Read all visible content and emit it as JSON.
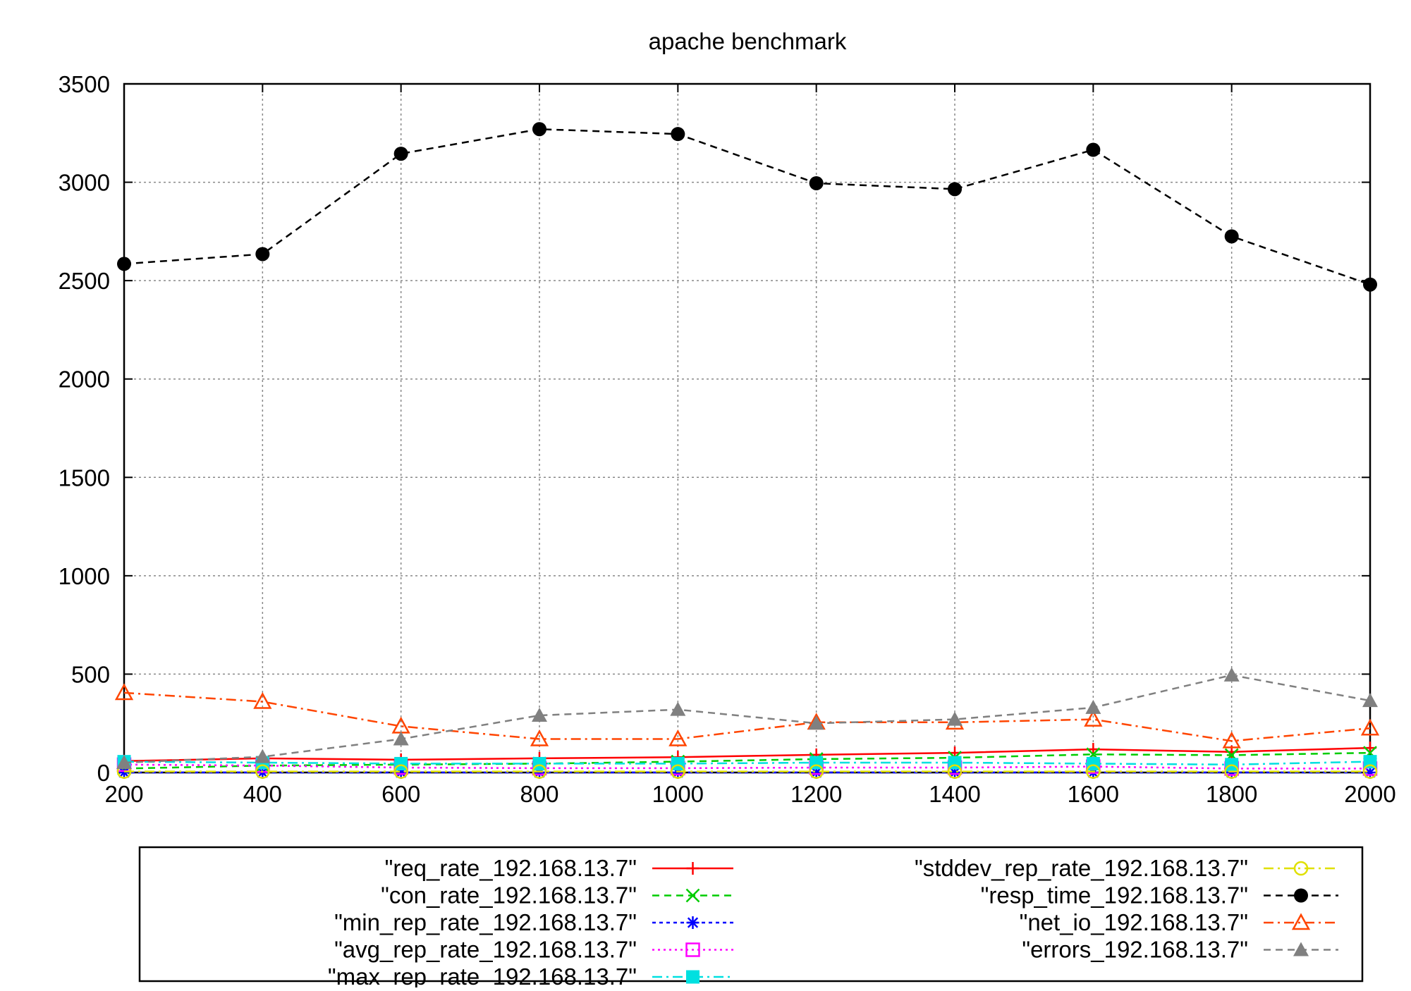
{
  "chart_data": {
    "type": "line",
    "title": "apache benchmark",
    "xlabel": "",
    "ylabel": "",
    "xlim": [
      200,
      2000
    ],
    "ylim": [
      0,
      3500
    ],
    "x_ticks": [
      "200",
      "400",
      "600",
      "800",
      "1000",
      "1200",
      "1400",
      "1600",
      "1800",
      "2000"
    ],
    "y_ticks": [
      "0",
      "500",
      "1000",
      "1500",
      "2000",
      "2500",
      "3000",
      "3500"
    ],
    "grid": true,
    "legend_position": "bottom",
    "x": [
      200,
      400,
      600,
      800,
      1000,
      1200,
      1400,
      1600,
      1800,
      2000
    ],
    "series": [
      {
        "name": "\"req_rate_192.168.13.7\"",
        "color": "#ff0000",
        "dash": "solid",
        "marker": "plus",
        "values": [
          58,
          72,
          65,
          72,
          78,
          90,
          100,
          118,
          105,
          125
        ]
      },
      {
        "name": "\"con_rate_192.168.13.7\"",
        "color": "#00cc00",
        "dash": "dashed",
        "marker": "cross",
        "values": [
          20,
          35,
          40,
          45,
          55,
          68,
          75,
          92,
          88,
          100
        ]
      },
      {
        "name": "\"min_rep_rate_192.168.13.7\"",
        "color": "#0000ff",
        "dash": "dotted-short",
        "marker": "star",
        "values": [
          0,
          0,
          0,
          0,
          0,
          0,
          0,
          0,
          0,
          0
        ]
      },
      {
        "name": "\"avg_rep_rate_192.168.13.7\"",
        "color": "#ff00ff",
        "dash": "dotted",
        "marker": "open-square",
        "values": [
          40,
          35,
          25,
          22,
          22,
          25,
          25,
          30,
          20,
          20
        ]
      },
      {
        "name": "\"max_rep_rate_192.168.13.7\"",
        "color": "#00e0e0",
        "dash": "dash-dot",
        "marker": "filled-square",
        "values": [
          55,
          50,
          45,
          45,
          45,
          50,
          50,
          45,
          40,
          55
        ]
      },
      {
        "name": "\"stddev_rep_rate_192.168.13.7\"",
        "color": "#e0e000",
        "dash": "dash-dot",
        "marker": "open-circle",
        "values": [
          5,
          5,
          5,
          5,
          5,
          5,
          5,
          5,
          5,
          5
        ]
      },
      {
        "name": "\"resp_time_192.168.13.7\"",
        "color": "#000000",
        "dash": "dashed",
        "marker": "filled-circle",
        "values": [
          2585,
          2635,
          3145,
          3270,
          3245,
          2995,
          2965,
          3165,
          2725,
          2480
        ]
      },
      {
        "name": "\"net_io_192.168.13.7\"",
        "color": "#ff4500",
        "dash": "dash-dot",
        "marker": "open-triangle",
        "values": [
          405,
          360,
          235,
          170,
          170,
          255,
          255,
          270,
          160,
          225
        ]
      },
      {
        "name": "\"errors_192.168.13.7\"",
        "color": "#808080",
        "dash": "dashed",
        "marker": "filled-triangle",
        "values": [
          50,
          80,
          170,
          290,
          320,
          250,
          270,
          330,
          495,
          365
        ]
      }
    ]
  }
}
